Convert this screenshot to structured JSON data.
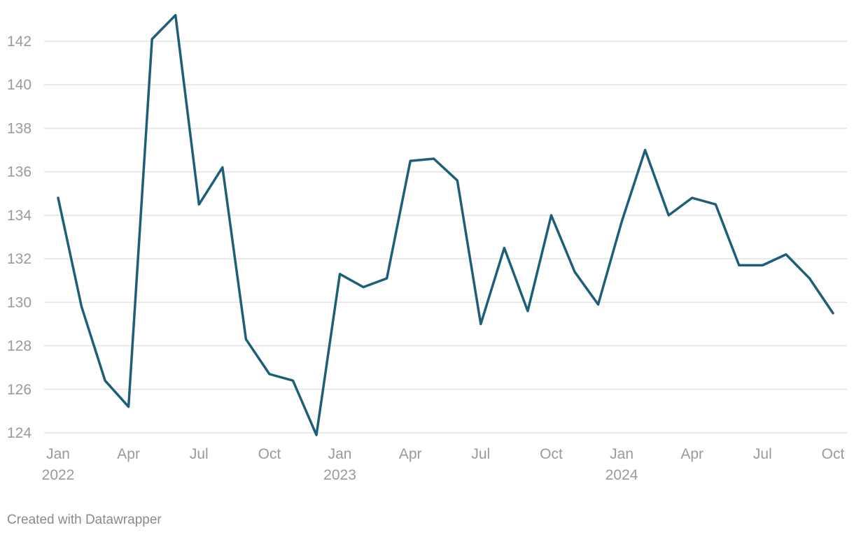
{
  "footer": {
    "credit": "Created with Datawrapper"
  },
  "colors": {
    "line": "#1d5f78",
    "grid": "#e3e3e3",
    "tick_text": "#9a9a9a",
    "credit_text": "#8a8a8a"
  },
  "chart_data": {
    "type": "line",
    "title": "",
    "xlabel": "",
    "ylabel": "",
    "ylim": [
      124,
      143
    ],
    "y_ticks": [
      124,
      126,
      128,
      130,
      132,
      134,
      136,
      138,
      140,
      142
    ],
    "grid": true,
    "x_ticks": [
      {
        "date": "2022-01",
        "label": "Jan",
        "year": "2022"
      },
      {
        "date": "2022-04",
        "label": "Apr",
        "year": ""
      },
      {
        "date": "2022-07",
        "label": "Jul",
        "year": ""
      },
      {
        "date": "2022-10",
        "label": "Oct",
        "year": ""
      },
      {
        "date": "2023-01",
        "label": "Jan",
        "year": "2023"
      },
      {
        "date": "2023-04",
        "label": "Apr",
        "year": ""
      },
      {
        "date": "2023-07",
        "label": "Jul",
        "year": ""
      },
      {
        "date": "2023-10",
        "label": "Oct",
        "year": ""
      },
      {
        "date": "2024-01",
        "label": "Jan",
        "year": "2024"
      },
      {
        "date": "2024-04",
        "label": "Apr",
        "year": ""
      },
      {
        "date": "2024-07",
        "label": "Jul",
        "year": ""
      },
      {
        "date": "2024-10",
        "label": "Oct",
        "year": ""
      }
    ],
    "series": [
      {
        "x": [
          "2022-01",
          "2022-02",
          "2022-03",
          "2022-04",
          "2022-05",
          "2022-06",
          "2022-07",
          "2022-08",
          "2022-09",
          "2022-10",
          "2022-11",
          "2022-12",
          "2023-01",
          "2023-02",
          "2023-03",
          "2023-04",
          "2023-05",
          "2023-06",
          "2023-07",
          "2023-08",
          "2023-09",
          "2023-10",
          "2023-11",
          "2023-12",
          "2024-01",
          "2024-02",
          "2024-03",
          "2024-04",
          "2024-05",
          "2024-06",
          "2024-07",
          "2024-08",
          "2024-09",
          "2024-10"
        ],
        "values": [
          134.8,
          129.8,
          126.4,
          125.2,
          142.1,
          143.2,
          134.5,
          136.2,
          128.3,
          126.7,
          126.4,
          123.9,
          131.3,
          130.7,
          131.1,
          136.5,
          136.6,
          135.6,
          129.0,
          132.5,
          129.6,
          134.0,
          131.4,
          129.9,
          133.7,
          137.0,
          134.0,
          134.8,
          134.5,
          131.7,
          131.7,
          132.2,
          131.1,
          129.5
        ]
      }
    ]
  }
}
